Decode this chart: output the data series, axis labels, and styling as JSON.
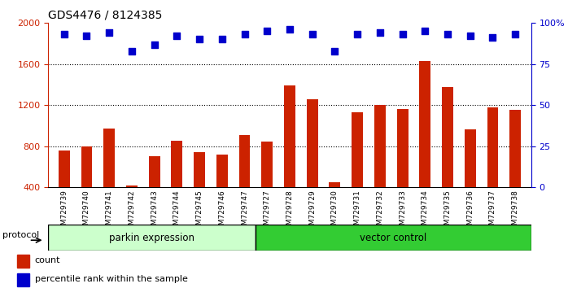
{
  "title": "GDS4476 / 8124385",
  "samples": [
    "GSM729739",
    "GSM729740",
    "GSM729741",
    "GSM729742",
    "GSM729743",
    "GSM729744",
    "GSM729745",
    "GSM729746",
    "GSM729747",
    "GSM729727",
    "GSM729728",
    "GSM729729",
    "GSM729730",
    "GSM729731",
    "GSM729732",
    "GSM729733",
    "GSM729734",
    "GSM729735",
    "GSM729736",
    "GSM729737",
    "GSM729738"
  ],
  "counts": [
    755,
    795,
    970,
    420,
    700,
    850,
    745,
    720,
    910,
    845,
    1390,
    1260,
    450,
    1130,
    1200,
    1160,
    1630,
    1380,
    960,
    1175,
    1155
  ],
  "percentile_ranks": [
    93,
    92,
    94,
    83,
    87,
    92,
    90,
    90,
    93,
    95,
    96,
    93,
    83,
    93,
    94,
    93,
    95,
    93,
    92,
    91,
    93
  ],
  "bar_color": "#cc2200",
  "dot_color": "#0000cc",
  "ylim_left": [
    400,
    2000
  ],
  "ylim_right": [
    0,
    100
  ],
  "yticks_left": [
    400,
    800,
    1200,
    1600,
    2000
  ],
  "yticks_right": [
    0,
    25,
    50,
    75,
    100
  ],
  "grid_values": [
    800,
    1200,
    1600
  ],
  "parkin_count": 9,
  "vector_count": 12,
  "parkin_label": "parkin expression",
  "vector_label": "vector control",
  "protocol_label": "protocol",
  "legend_count_label": "count",
  "legend_pct_label": "percentile rank within the sample",
  "plot_bg": "#ffffff",
  "parkin_bg": "#ccffcc",
  "vector_bg": "#33cc33",
  "bar_width": 0.5,
  "dot_size": 28,
  "dot_marker": "s"
}
